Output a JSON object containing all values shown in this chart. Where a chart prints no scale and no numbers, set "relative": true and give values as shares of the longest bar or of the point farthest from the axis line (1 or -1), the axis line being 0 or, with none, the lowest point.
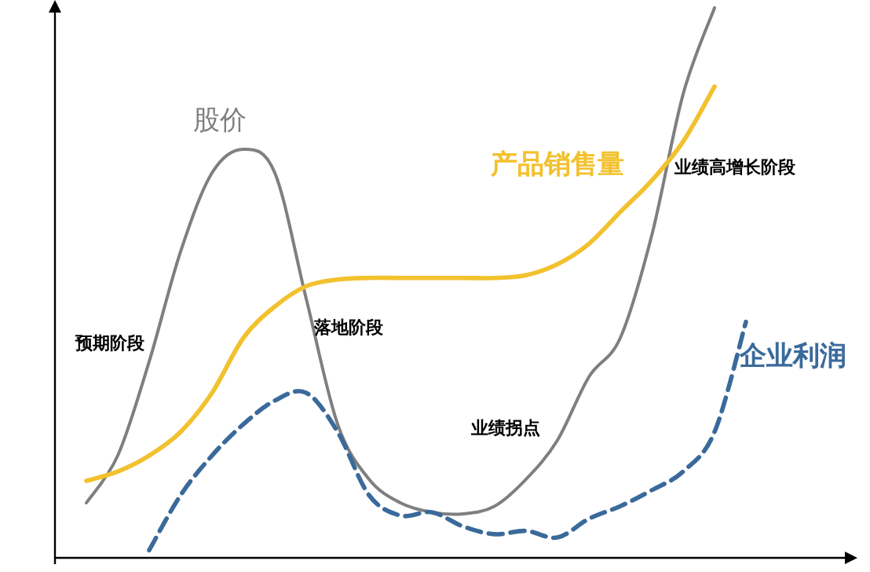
{
  "chart_data": {
    "type": "line",
    "relative": true,
    "categories": [
      null,
      null,
      null,
      null,
      null,
      null,
      null,
      null,
      null,
      null,
      null,
      null,
      null,
      null,
      null,
      null,
      null,
      null,
      null,
      null,
      null,
      null,
      null,
      null,
      null,
      null
    ],
    "series": [
      {
        "name": "股价",
        "color": "#7f7f7f",
        "line_style": "solid",
        "values": [
          null,
          0.1,
          0.186,
          0.357,
          0.557,
          0.7,
          0.743,
          0.7,
          0.471,
          0.243,
          0.143,
          0.1,
          0.083,
          0.08,
          0.094,
          0.143,
          0.214,
          0.329,
          0.4,
          0.586,
          0.843,
          1,
          null,
          null,
          null,
          null
        ]
      },
      {
        "name": "产品销售量",
        "color": "#f2c12e",
        "line_style": "solid",
        "values": [
          null,
          0.14,
          0.157,
          0.186,
          0.229,
          0.3,
          0.4,
          0.457,
          0.494,
          0.506,
          0.509,
          0.509,
          0.509,
          0.509,
          0.509,
          0.514,
          0.534,
          0.571,
          0.629,
          0.686,
          0.757,
          0.857,
          null,
          null,
          null,
          null
        ]
      },
      {
        "name": "企业利润",
        "color": "#3a6a9a",
        "line_style": "dashed",
        "values": [
          null,
          null,
          null,
          0.014,
          0.114,
          0.186,
          0.243,
          0.286,
          0.3,
          0.229,
          0.114,
          0.077,
          0.083,
          0.057,
          0.043,
          0.049,
          0.037,
          0.071,
          0.094,
          0.123,
          0.157,
          0.229,
          0.429,
          null,
          null,
          null
        ]
      }
    ],
    "annotations": [
      "预期阶段",
      "落地阶段",
      "业绩拐点",
      "业绩高增长阶段"
    ]
  }
}
